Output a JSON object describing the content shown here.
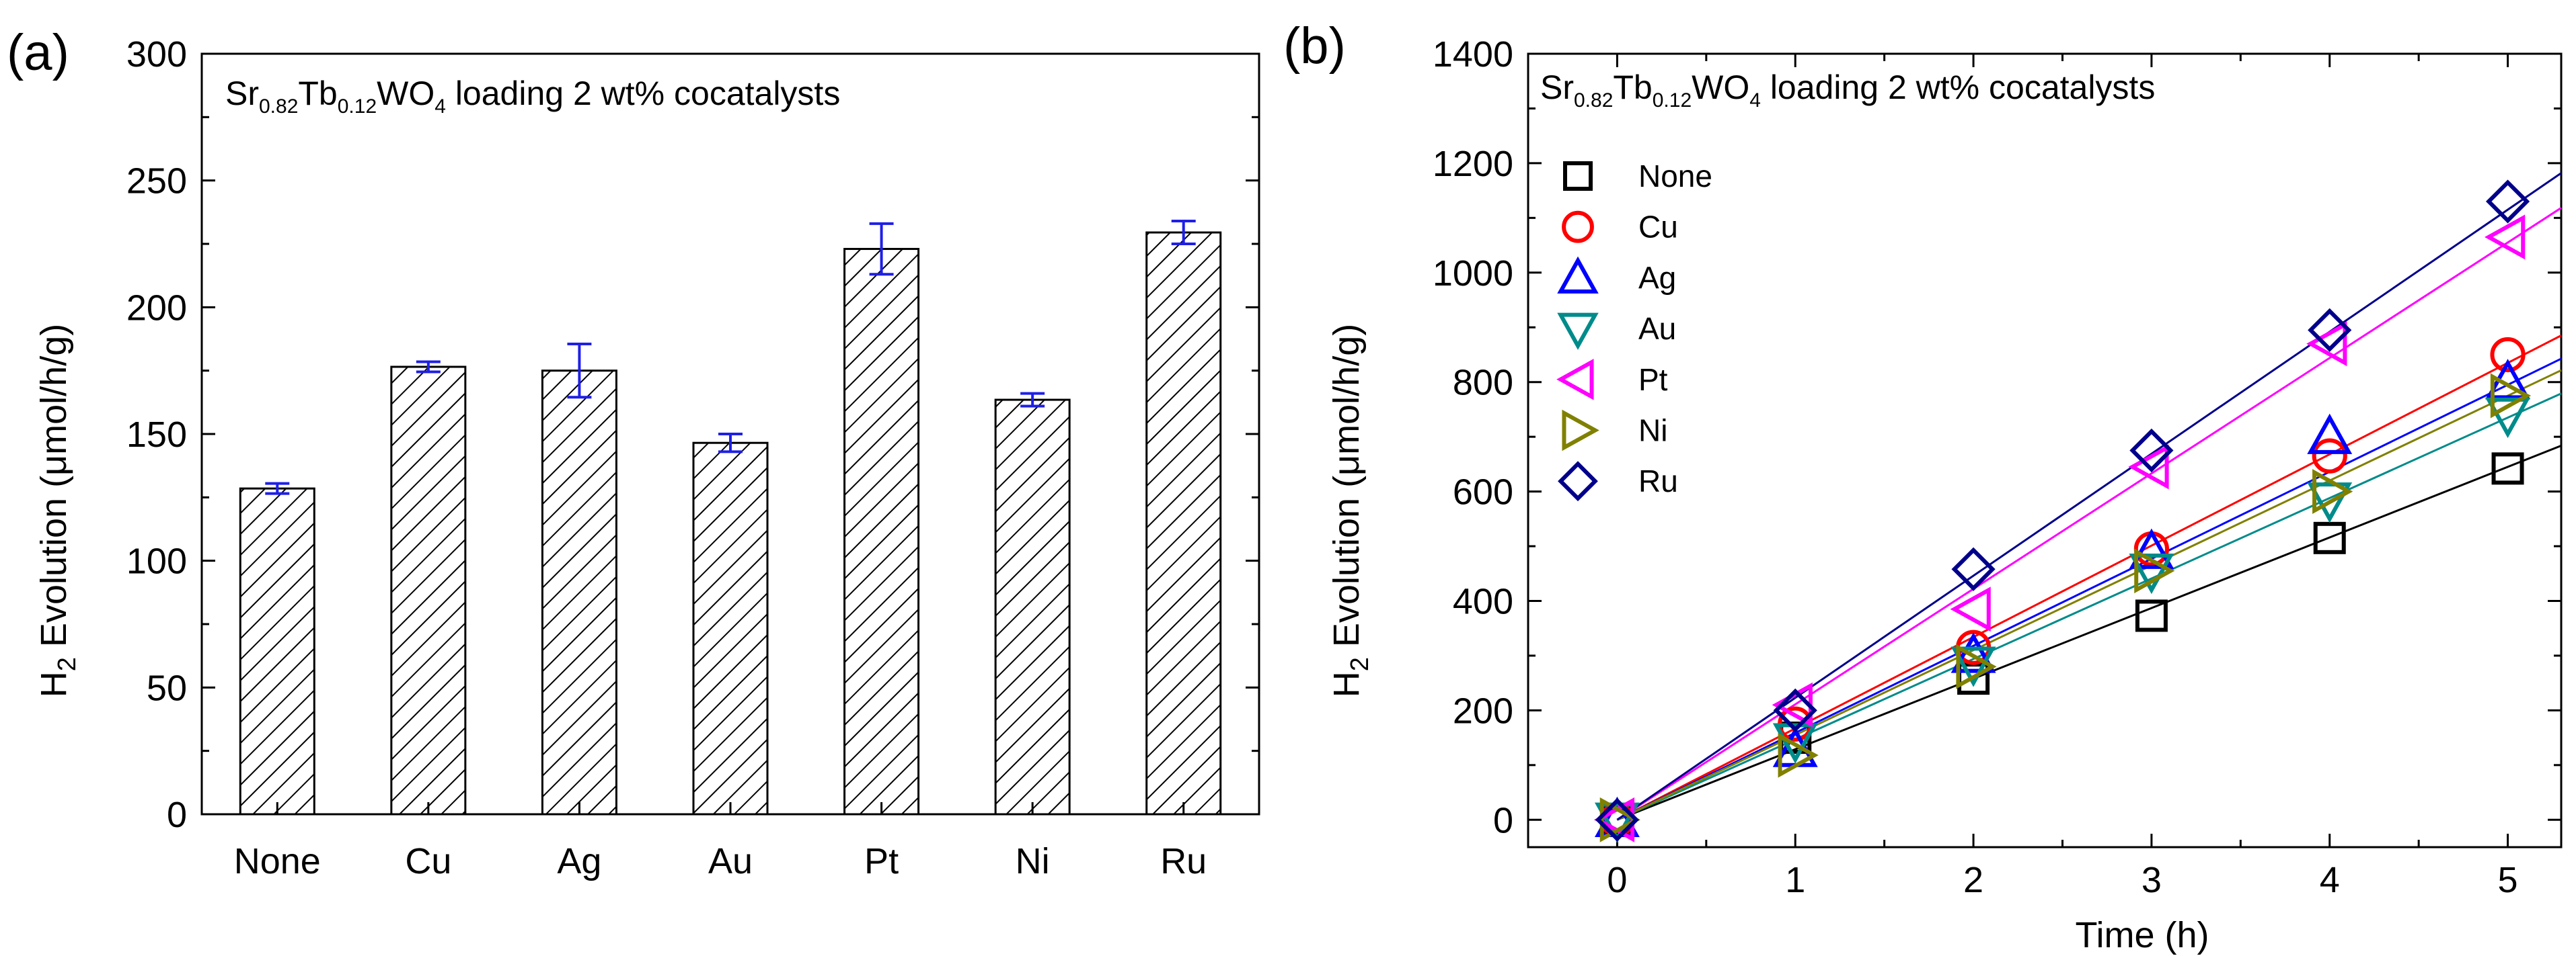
{
  "panels": {
    "a": {
      "label": "(a)"
    },
    "b": {
      "label": "(b)"
    }
  },
  "chart_data": [
    {
      "type": "bar",
      "panel": "(a)",
      "title": {
        "base1": "Sr",
        "sub1": "0.82",
        "base2": "Tb",
        "sub2": "0.12",
        "base3": "WO",
        "sub3": "4",
        "rest": " loading 2 wt% cocatalysts"
      },
      "xlabel": "",
      "ylabel": {
        "base": "H",
        "sub": "2",
        "rest": " Evolution (μmol/h/g)"
      },
      "ylim": [
        0,
        300
      ],
      "yticks": [
        "0",
        "50",
        "100",
        "150",
        "200",
        "250",
        "300"
      ],
      "categories": [
        "None",
        "Cu",
        "Ag",
        "Au",
        "Pt",
        "Ni",
        "Ru"
      ],
      "values": [
        128.5,
        176.5,
        175,
        146.5,
        223,
        163.5,
        229.5
      ],
      "errors": [
        2,
        2,
        10.5,
        3.5,
        10,
        2.5,
        4.5
      ],
      "colors": {
        "bar_edge": "#000000",
        "hatch": "#000000",
        "error_bar": "#1f1fe6"
      }
    },
    {
      "type": "line",
      "panel": "(b)",
      "title": {
        "base1": "Sr",
        "sub1": "0.82",
        "base2": "Tb",
        "sub2": "0.12",
        "base3": "WO",
        "sub3": "4",
        "rest": " loading 2 wt% cocatalysts"
      },
      "xlabel": "Time (h)",
      "ylabel": {
        "base": "H",
        "sub": "2",
        "rest": " Evolution (μmol/h/g)"
      },
      "xlim": [
        -0.5,
        5.3
      ],
      "ylim": [
        -50,
        1400
      ],
      "xticks": [
        "0",
        "1",
        "2",
        "3",
        "4",
        "5"
      ],
      "yticks": [
        "0",
        "200",
        "400",
        "600",
        "800",
        "1000",
        "1200",
        "1400"
      ],
      "x": [
        0,
        1,
        2,
        3,
        4,
        5
      ],
      "legend_position": "upper-left",
      "series": [
        {
          "name": "None",
          "marker": "square",
          "color": "#000000",
          "values": [
            0,
            150,
            258,
            373,
            515,
            642
          ],
          "slope": 129
        },
        {
          "name": "Cu",
          "marker": "circle",
          "color": "#ff0000",
          "values": [
            0,
            175,
            315,
            495,
            665,
            850
          ],
          "slope": 167
        },
        {
          "name": "Ag",
          "marker": "triangle-up",
          "color": "#0000ff",
          "values": [
            0,
            128,
            300,
            490,
            700,
            800
          ],
          "slope": 159
        },
        {
          "name": "Au",
          "marker": "triangle-down",
          "color": "#008b8b",
          "values": [
            0,
            145,
            285,
            455,
            585,
            740
          ],
          "slope": 147
        },
        {
          "name": "Pt",
          "marker": "triangle-left",
          "color": "#ff00ff",
          "values": [
            0,
            210,
            385,
            645,
            870,
            1065
          ],
          "slope": 211
        },
        {
          "name": "Ni",
          "marker": "triangle-right",
          "color": "#808000",
          "values": [
            0,
            118,
            280,
            455,
            600,
            775
          ],
          "slope": 155
        },
        {
          "name": "Ru",
          "marker": "diamond",
          "color": "#00008b",
          "values": [
            0,
            200,
            458,
            675,
            895,
            1130
          ],
          "slope": 223
        }
      ]
    }
  ]
}
